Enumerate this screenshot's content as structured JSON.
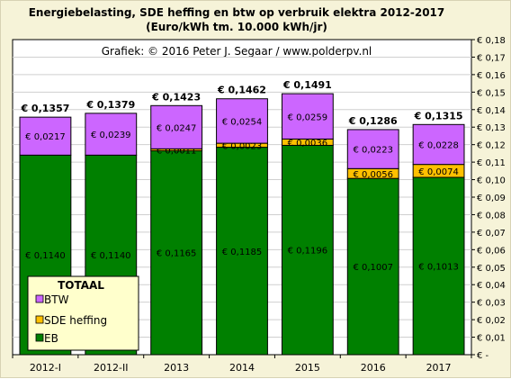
{
  "chart_data": {
    "type": "bar",
    "stacked": true,
    "title_line1": "Energiebelasting,  SDE heffing  en btw op verbruik elektra 2012-2017",
    "title_line2": "(Euro/kWh tm. 10.000 kWh/jr)",
    "credit": "Grafiek:  © 2016  Peter J. Segaar  /  www.polderpv.nl",
    "categories": [
      "2012-I",
      "2012-II",
      "2013",
      "2014",
      "2015",
      "2016",
      "2017"
    ],
    "series": [
      {
        "name": "EB",
        "color": "#008000",
        "values": [
          0.114,
          0.114,
          0.1165,
          0.1185,
          0.1196,
          0.1007,
          0.1013
        ],
        "labels": [
          "€ 0,1140",
          "€ 0,1140",
          "€ 0,1165",
          "€ 0,1185",
          "€ 0,1196",
          "€ 0,1007",
          "€ 0,1013"
        ]
      },
      {
        "name": "SDE heffing",
        "color": "#ffc000",
        "values": [
          0,
          0,
          0.0011,
          0.0023,
          0.0036,
          0.0056,
          0.0074
        ],
        "labels": [
          "",
          "",
          "€ 0,0011",
          "€ 0,0023",
          "€ 0,0036",
          "€ 0,0056",
          "€ 0,0074"
        ]
      },
      {
        "name": "BTW",
        "color": "#cc66ff",
        "values": [
          0.0217,
          0.0239,
          0.0247,
          0.0254,
          0.0259,
          0.0223,
          0.0228
        ],
        "labels": [
          "€ 0,0217",
          "€ 0,0239",
          "€ 0,0247",
          "€ 0,0254",
          "€ 0,0259",
          "€ 0,0223",
          "€ 0,0228"
        ]
      }
    ],
    "totals": [
      "€ 0,1357",
      "€ 0,1379",
      "€ 0,1423",
      "€ 0,1462",
      "€ 0,1491",
      "€ 0,1286",
      "€ 0,1315"
    ],
    "ylim": [
      0,
      0.18
    ],
    "ytick_step": 0.01,
    "yticks": [
      "€ -",
      "€ 0,01",
      "€ 0,02",
      "€ 0,03",
      "€ 0,04",
      "€ 0,05",
      "€ 0,06",
      "€ 0,07",
      "€ 0,08",
      "€ 0,09",
      "€ 0,10",
      "€ 0,11",
      "€ 0,12",
      "€ 0,13",
      "€ 0,14",
      "€ 0,15",
      "€ 0,16",
      "€ 0,17",
      "€ 0,18"
    ],
    "y_axis_side": "right",
    "legend": {
      "title": "TOTAAL",
      "position": "bottom-left",
      "items": [
        {
          "label": "BTW",
          "color": "#cc66ff"
        },
        {
          "label": "SDE heffing",
          "color": "#ffc000"
        },
        {
          "label": "EB",
          "color": "#008000"
        }
      ]
    },
    "colors": {
      "plot_background": "#ffffff",
      "frame_background": "#f6f3d8",
      "legend_background": "#ffffcc"
    }
  }
}
